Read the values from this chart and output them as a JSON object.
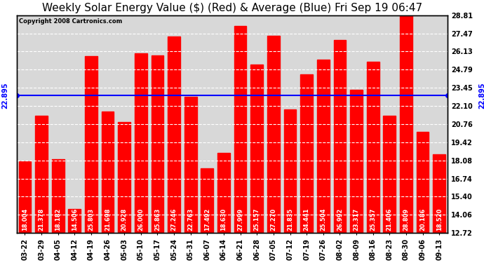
{
  "title": "Weekly Solar Energy Value ($) (Red) & Average (Blue) Fri Sep 19 06:47",
  "copyright": "Copyright 2008 Cartronics.com",
  "average": 22.895,
  "bar_color": "#ff0000",
  "avg_line_color": "#0000ff",
  "background_color": "#ffffff",
  "plot_bg_color": "#d8d8d8",
  "categories": [
    "03-22",
    "03-29",
    "04-05",
    "04-12",
    "04-19",
    "04-26",
    "05-03",
    "05-10",
    "05-17",
    "05-24",
    "05-31",
    "06-07",
    "06-14",
    "06-21",
    "06-28",
    "07-05",
    "07-12",
    "07-19",
    "07-26",
    "08-02",
    "08-09",
    "08-16",
    "08-23",
    "08-30",
    "09-06",
    "09-13"
  ],
  "values": [
    18.004,
    21.378,
    18.182,
    14.506,
    25.803,
    21.698,
    20.928,
    26.0,
    25.863,
    27.246,
    22.763,
    17.492,
    18.63,
    27.999,
    25.157,
    27.27,
    21.835,
    24.441,
    25.504,
    26.992,
    23.317,
    25.357,
    21.406,
    28.809,
    20.186,
    18.52
  ],
  "yticks": [
    12.72,
    14.06,
    15.4,
    16.74,
    18.08,
    19.42,
    20.76,
    22.1,
    23.45,
    24.79,
    26.13,
    27.47,
    28.81
  ],
  "ymin": 12.72,
  "ymax": 28.81,
  "grid_color": "#ffffff",
  "text_color": "#000000",
  "avg_label": "22.895",
  "title_fontsize": 11,
  "tick_fontsize": 7,
  "bar_label_fontsize": 6,
  "dpi": 100
}
